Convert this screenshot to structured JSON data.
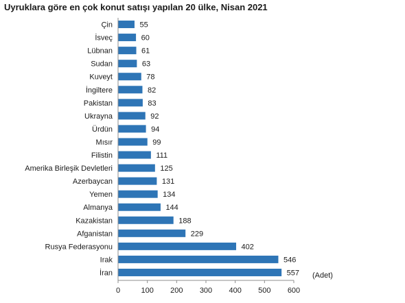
{
  "chart_data": {
    "type": "bar",
    "orientation": "horizontal",
    "title": "Uyruklara göre en çok konut satışı yapılan 20 ülke, Nisan 2021",
    "categories": [
      "Çin",
      "İsveç",
      "Lübnan",
      "Sudan",
      "Kuveyt",
      "İngiltere",
      "Pakistan",
      "Ukrayna",
      "Ürdün",
      "Mısır",
      "Filistin",
      "Amerika Birleşik Devletleri",
      "Azerbaycan",
      "Yemen",
      "Almanya",
      "Kazakistan",
      "Afganistan",
      "Rusya Federasyonu",
      "Irak",
      "İran"
    ],
    "values": [
      55,
      60,
      61,
      63,
      78,
      82,
      83,
      92,
      94,
      99,
      111,
      125,
      131,
      134,
      144,
      188,
      229,
      402,
      546,
      557
    ],
    "x_ticks": [
      "0",
      "100",
      "200",
      "300",
      "400",
      "500",
      "600"
    ],
    "xlim": [
      0,
      600
    ],
    "unit_label": "(Adet)",
    "bar_color": "#2e75b6",
    "grid": false,
    "legend": "none"
  }
}
